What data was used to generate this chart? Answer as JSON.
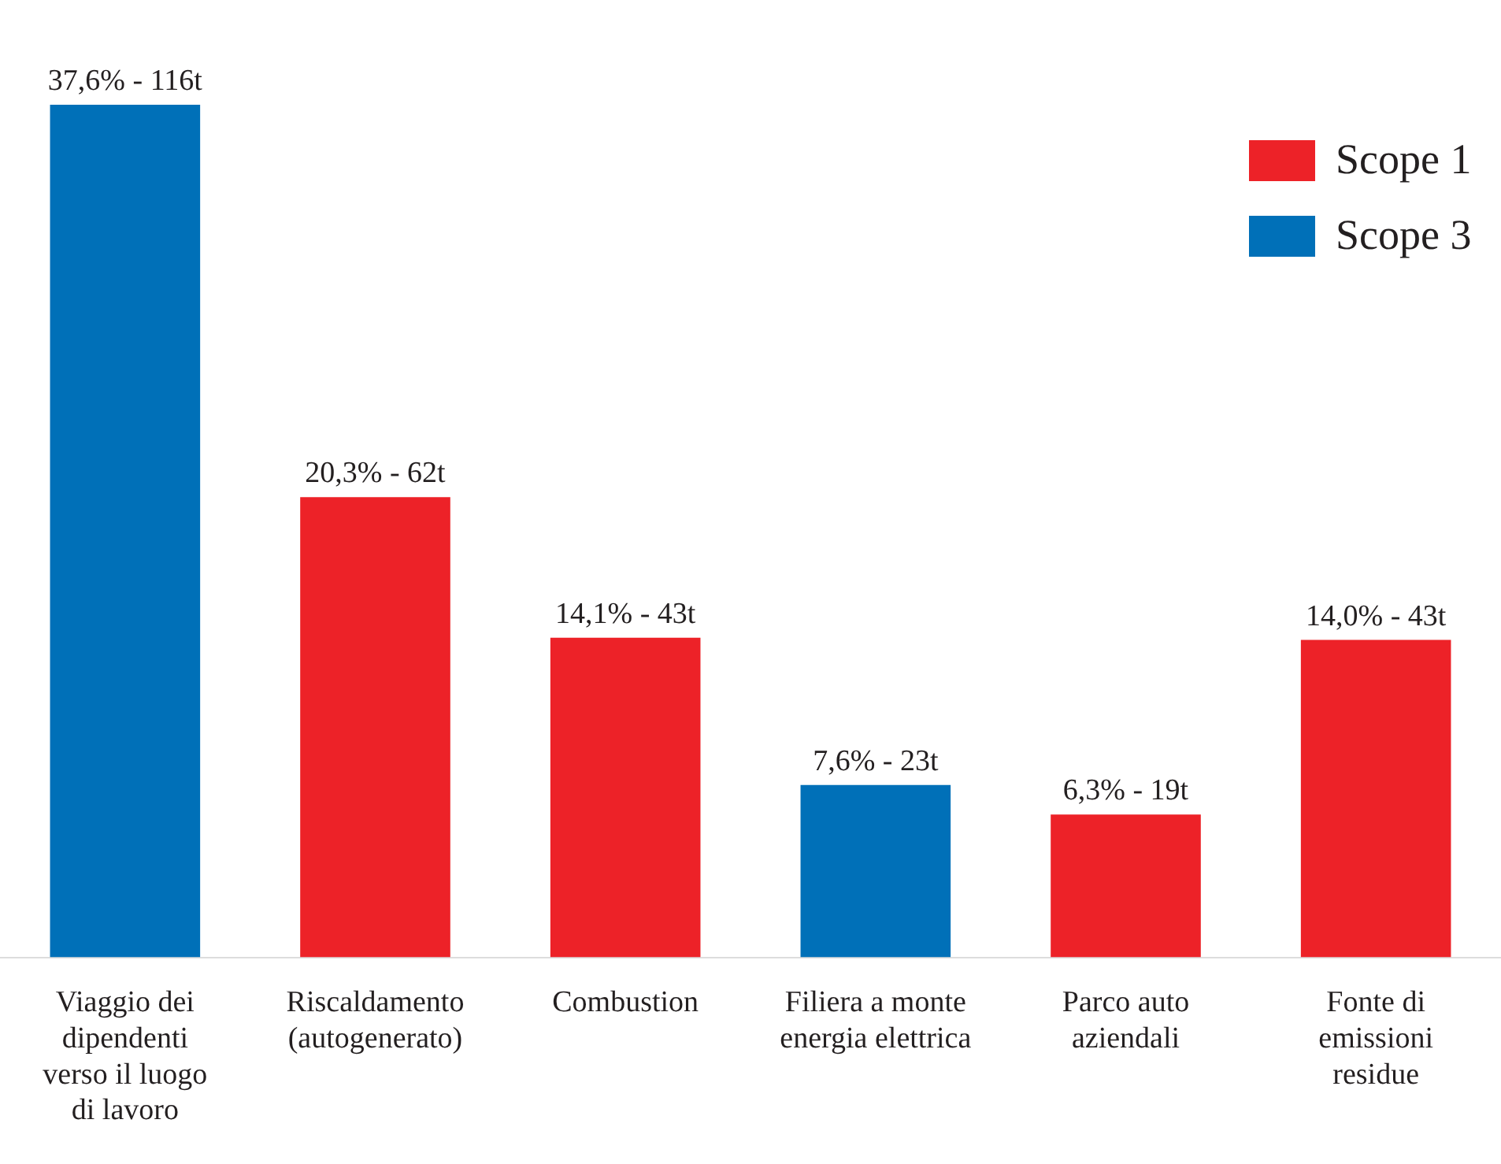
{
  "chart_data": {
    "type": "bar",
    "stacked": true,
    "legend": "top right",
    "categories": [
      "Viaggio dei dipendenti verso il luogo di lavoro",
      "Riscaldamento (autogenerato)",
      "Combustion",
      "Filiera a monte energia elettrica",
      "Parco auto aziendali",
      "Fonte di emissioni residue"
    ],
    "series": [
      {
        "name": "Scope 1",
        "color": "#ed2228",
        "values": [
          null,
          20.3,
          14.1,
          null,
          6.3,
          14.0
        ],
        "value_labels": [
          null,
          "20,3% - 62t",
          "14,1% - 43t",
          null,
          "6,3% - 19t",
          "14,0% - 43t"
        ]
      },
      {
        "name": "Scope 3",
        "color": "#0070b8",
        "values": [
          37.6,
          null,
          null,
          7.6,
          null,
          null
        ],
        "value_labels": [
          "37,6% - 116t",
          null,
          null,
          "7,6% - 23t",
          null,
          null
        ]
      }
    ]
  }
}
